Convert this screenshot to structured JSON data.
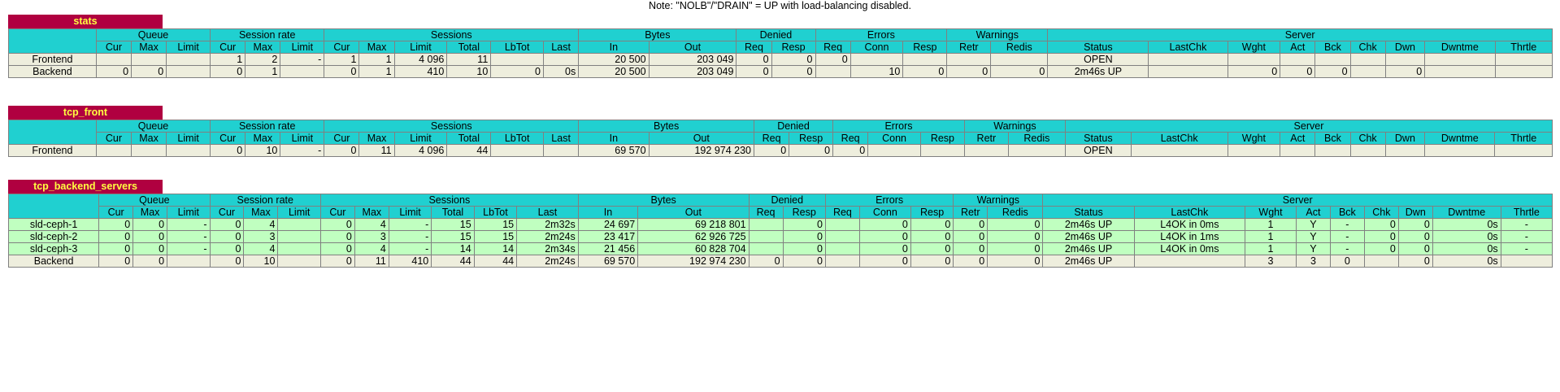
{
  "note": "Note: \"NOLB\"/\"DRAIN\" = UP with load-balancing disabled.",
  "group_headers": [
    "Queue",
    "Session rate",
    "Sessions",
    "Bytes",
    "Denied",
    "Errors",
    "Warnings",
    "Server"
  ],
  "sub_headers": {
    "queue": [
      "Cur",
      "Max",
      "Limit"
    ],
    "rate": [
      "Cur",
      "Max",
      "Limit"
    ],
    "sessions": [
      "Cur",
      "Max",
      "Limit",
      "Total",
      "LbTot",
      "Last"
    ],
    "bytes": [
      "In",
      "Out"
    ],
    "denied": [
      "Req",
      "Resp"
    ],
    "errors": [
      "Req",
      "Conn",
      "Resp"
    ],
    "warnings": [
      "Retr",
      "Redis"
    ],
    "server": [
      "Status",
      "LastChk",
      "Wght",
      "Act",
      "Bck",
      "Chk",
      "Dwn",
      "Dwntme",
      "Thrtle"
    ]
  },
  "proxies": {
    "stats": {
      "title": "stats",
      "frontend": {
        "name": "Frontend",
        "q_cur": "",
        "q_max": "",
        "q_limit": "",
        "r_cur": "1",
        "r_max": "2",
        "r_limit": "-",
        "s_cur": "1",
        "s_max": "1",
        "s_limit": "4 096",
        "s_total": "11",
        "s_lbtot": "",
        "s_last": "",
        "b_in": "20 500",
        "b_out": "203 049",
        "d_req": "0",
        "d_resp": "0",
        "e_req": "0",
        "e_conn": "",
        "e_resp": "",
        "w_retr": "",
        "w_redis": "",
        "status": "OPEN",
        "lastchk": "",
        "wght": "",
        "act": "",
        "bck": "",
        "chk": "",
        "dwn": "",
        "dwntme": "",
        "thrtle": ""
      },
      "backend": {
        "name": "Backend",
        "q_cur": "0",
        "q_max": "0",
        "q_limit": "",
        "r_cur": "0",
        "r_max": "1",
        "r_limit": "",
        "s_cur": "0",
        "s_max": "1",
        "s_limit": "410",
        "s_total": "10",
        "s_lbtot": "0",
        "s_last": "0s",
        "b_in": "20 500",
        "b_out": "203 049",
        "d_req": "0",
        "d_resp": "0",
        "e_req": "",
        "e_conn": "10",
        "e_resp": "0",
        "w_retr": "0",
        "w_redis": "0",
        "status": "2m46s UP",
        "lastchk": "",
        "wght": "0",
        "act": "0",
        "bck": "0",
        "chk": "",
        "dwn": "0",
        "dwntme": "",
        "thrtle": ""
      }
    },
    "tcp_front": {
      "title": "tcp_front",
      "frontend": {
        "name": "Frontend",
        "q_cur": "",
        "q_max": "",
        "q_limit": "",
        "r_cur": "0",
        "r_max": "10",
        "r_limit": "-",
        "s_cur": "0",
        "s_max": "11",
        "s_limit": "4 096",
        "s_total": "44",
        "s_lbtot": "",
        "s_last": "",
        "b_in": "69 570",
        "b_out": "192 974 230",
        "d_req": "0",
        "d_resp": "0",
        "e_req": "0",
        "e_conn": "",
        "e_resp": "",
        "w_retr": "",
        "w_redis": "",
        "status": "OPEN",
        "lastchk": "",
        "wght": "",
        "act": "",
        "bck": "",
        "chk": "",
        "dwn": "",
        "dwntme": "",
        "thrtle": ""
      }
    },
    "tcp_backend_servers": {
      "title": "tcp_backend_servers",
      "servers": [
        {
          "name": "sld-ceph-1",
          "q_cur": "0",
          "q_max": "0",
          "q_limit": "-",
          "r_cur": "0",
          "r_max": "4",
          "r_limit": "",
          "s_cur": "0",
          "s_max": "4",
          "s_limit": "-",
          "s_total": "15",
          "s_lbtot": "15",
          "s_last": "2m32s",
          "b_in": "24 697",
          "b_out": "69 218 801",
          "d_req": "",
          "d_resp": "0",
          "e_req": "",
          "e_conn": "0",
          "e_resp": "0",
          "w_retr": "0",
          "w_redis": "0",
          "status": "2m46s UP",
          "lastchk": "L4OK in 0ms",
          "wght": "1",
          "act": "Y",
          "bck": "-",
          "chk": "0",
          "dwn": "0",
          "dwntme": "0s",
          "thrtle": "-"
        },
        {
          "name": "sld-ceph-2",
          "q_cur": "0",
          "q_max": "0",
          "q_limit": "-",
          "r_cur": "0",
          "r_max": "3",
          "r_limit": "",
          "s_cur": "0",
          "s_max": "3",
          "s_limit": "-",
          "s_total": "15",
          "s_lbtot": "15",
          "s_last": "2m24s",
          "b_in": "23 417",
          "b_out": "62 926 725",
          "d_req": "",
          "d_resp": "0",
          "e_req": "",
          "e_conn": "0",
          "e_resp": "0",
          "w_retr": "0",
          "w_redis": "0",
          "status": "2m46s UP",
          "lastchk": "L4OK in 1ms",
          "wght": "1",
          "act": "Y",
          "bck": "-",
          "chk": "0",
          "dwn": "0",
          "dwntme": "0s",
          "thrtle": "-"
        },
        {
          "name": "sld-ceph-3",
          "q_cur": "0",
          "q_max": "0",
          "q_limit": "-",
          "r_cur": "0",
          "r_max": "4",
          "r_limit": "",
          "s_cur": "0",
          "s_max": "4",
          "s_limit": "-",
          "s_total": "14",
          "s_lbtot": "14",
          "s_last": "2m34s",
          "b_in": "21 456",
          "b_out": "60 828 704",
          "d_req": "",
          "d_resp": "0",
          "e_req": "",
          "e_conn": "0",
          "e_resp": "0",
          "w_retr": "0",
          "w_redis": "0",
          "status": "2m46s UP",
          "lastchk": "L4OK in 0ms",
          "wght": "1",
          "act": "Y",
          "bck": "-",
          "chk": "0",
          "dwn": "0",
          "dwntme": "0s",
          "thrtle": "-"
        }
      ],
      "backend": {
        "name": "Backend",
        "q_cur": "0",
        "q_max": "0",
        "q_limit": "",
        "r_cur": "0",
        "r_max": "10",
        "r_limit": "",
        "s_cur": "0",
        "s_max": "11",
        "s_limit": "410",
        "s_total": "44",
        "s_lbtot": "44",
        "s_last": "2m24s",
        "b_in": "69 570",
        "b_out": "192 974 230",
        "d_req": "0",
        "d_resp": "0",
        "e_req": "",
        "e_conn": "0",
        "e_resp": "0",
        "w_retr": "0",
        "w_redis": "0",
        "status": "2m46s UP",
        "lastchk": "",
        "wght": "3",
        "act": "3",
        "bck": "0",
        "chk": "",
        "dwn": "0",
        "dwntme": "0s",
        "thrtle": ""
      }
    }
  }
}
